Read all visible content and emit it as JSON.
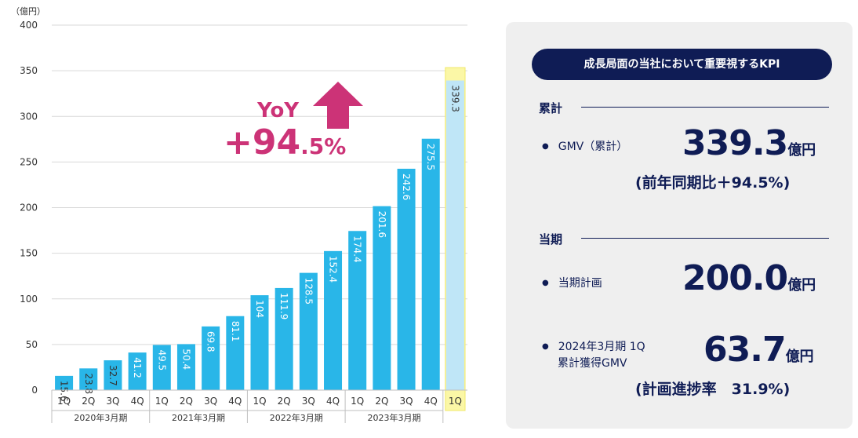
{
  "chart_data": {
    "type": "bar",
    "y_unit": "（億円）",
    "ylim": [
      0,
      400
    ],
    "yticks": [
      0,
      50,
      100,
      150,
      200,
      250,
      300,
      350,
      400
    ],
    "categories": [
      "1Q",
      "2Q",
      "3Q",
      "4Q",
      "1Q",
      "2Q",
      "3Q",
      "4Q",
      "1Q",
      "2Q",
      "3Q",
      "4Q",
      "1Q",
      "2Q",
      "3Q",
      "4Q",
      "1Q"
    ],
    "values": [
      15.6,
      23.8,
      32.7,
      41.2,
      49.5,
      50.4,
      69.8,
      81.1,
      104,
      111.9,
      128.5,
      152.4,
      174.4,
      201.6,
      242.6,
      275.5,
      339.3
    ],
    "value_labels": [
      "15.6",
      "23.8",
      "32.7",
      "41.2",
      "49.5",
      "50.4",
      "69.8",
      "81.1",
      "104",
      "111.9",
      "128.5",
      "152.4",
      "174.4",
      "201.6",
      "242.6",
      "275.5",
      "339.3"
    ],
    "fiscal_years": [
      "2020年3月期",
      "2021年3月期",
      "2022年3月期",
      "2023年3月期"
    ],
    "highlight_index": 16,
    "grid": true,
    "colors": {
      "bar": "#29b6e8",
      "highlight_bar": "#bfe6f7",
      "highlight_box": "#fbf7a6",
      "highlight_border": "#f0e86a"
    }
  },
  "yoy": {
    "label": "YoY",
    "value": "+94",
    "suffix": ".5%"
  },
  "kpi": {
    "header": "成長局面の当社において重要視するKPI",
    "section_cumulative": "累計",
    "gmv_label": "GMV（累計）",
    "gmv_value": "339.3",
    "unit": "億円",
    "gmv_note": "(前年同期比＋94.5%)",
    "section_current": "当期",
    "plan_label": "当期計画",
    "plan_value": "200.0",
    "acq_label_line1": "2024年3月期 1Q",
    "acq_label_line2": "累計獲得GMV",
    "acq_value": "63.7",
    "acq_note": "(計画進捗率　31.9%)"
  }
}
